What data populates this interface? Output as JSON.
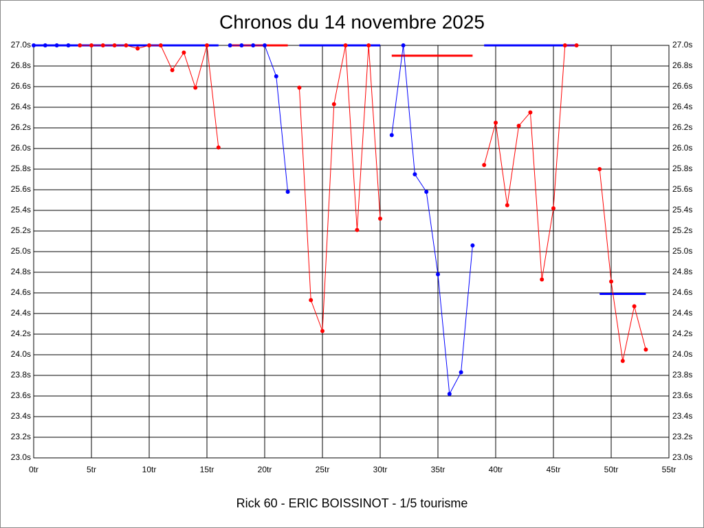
{
  "chart_data": {
    "type": "line",
    "title": "Chronos du 14 novembre 2025",
    "subtitle": "Rick 60 - ERIC BOISSINOT - 1/5 tourisme",
    "x": [
      0,
      1,
      2,
      3,
      4,
      5,
      6,
      7,
      8,
      9,
      10,
      11,
      12,
      13,
      14,
      15,
      16,
      17,
      18,
      19,
      20,
      21,
      22,
      23,
      24,
      25,
      26,
      27,
      28,
      29,
      30,
      31,
      32,
      33,
      34,
      35,
      36,
      37,
      38,
      39,
      40,
      41,
      42,
      43,
      44,
      45,
      46,
      47,
      48,
      49,
      50,
      51,
      52,
      53
    ],
    "series": [
      {
        "color": "#0000ff",
        "values": [
          27.0,
          27.0,
          27.0,
          27.0,
          null,
          null,
          null,
          null,
          null,
          null,
          null,
          null,
          null,
          null,
          null,
          null,
          null,
          27.0,
          27.0,
          27.0,
          27.0,
          26.7,
          25.58,
          null,
          null,
          null,
          null,
          null,
          null,
          null,
          null,
          26.13,
          27.0,
          25.75,
          25.58,
          24.78,
          23.62,
          23.83,
          25.06,
          null,
          null,
          null,
          null,
          null,
          null,
          null,
          null,
          null,
          null,
          null,
          null,
          null,
          null,
          null
        ]
      },
      {
        "color": "#ff0000",
        "values": [
          null,
          null,
          null,
          null,
          27.0,
          27.0,
          27.0,
          27.0,
          27.0,
          26.97,
          27.0,
          27.0,
          26.76,
          26.93,
          26.59,
          27.0,
          26.01,
          null,
          null,
          null,
          null,
          null,
          null,
          26.59,
          24.53,
          24.23,
          26.43,
          27.0,
          25.21,
          27.0,
          25.32,
          null,
          null,
          null,
          null,
          null,
          null,
          null,
          null,
          25.84,
          26.25,
          25.45,
          26.22,
          26.35,
          24.73,
          25.42,
          27.0,
          27.0,
          null,
          25.8,
          24.71,
          23.94,
          24.47,
          24.05
        ]
      }
    ],
    "averages": [
      {
        "from": 0,
        "to": 16,
        "value": 27.0,
        "color": "#0000ff"
      },
      {
        "from": 17,
        "to": 22,
        "value": 27.0,
        "color": "#ff0000"
      },
      {
        "from": 23,
        "to": 30,
        "value": 27.0,
        "color": "#0000ff"
      },
      {
        "from": 31,
        "to": 38,
        "value": 26.9,
        "color": "#ff0000"
      },
      {
        "from": 39,
        "to": 47,
        "value": 27.0,
        "color": "#0000ff"
      },
      {
        "from": 49,
        "to": 53,
        "value": 24.59,
        "color": "#0000ff"
      }
    ],
    "xlim": [
      0,
      55
    ],
    "xticks": [
      {
        "value": 0,
        "label": "0tr"
      },
      {
        "value": 5,
        "label": "5tr"
      },
      {
        "value": 10,
        "label": "10tr"
      },
      {
        "value": 15,
        "label": "15tr"
      },
      {
        "value": 20,
        "label": "20tr"
      },
      {
        "value": 25,
        "label": "25tr"
      },
      {
        "value": 30,
        "label": "30tr"
      },
      {
        "value": 35,
        "label": "35tr"
      },
      {
        "value": 40,
        "label": "40tr"
      },
      {
        "value": 45,
        "label": "45tr"
      },
      {
        "value": 50,
        "label": "50tr"
      },
      {
        "value": 55,
        "label": "55tr"
      }
    ],
    "ylim": [
      23.0,
      27.0
    ],
    "yticks": [
      {
        "value": 23.0,
        "label": "23.0s"
      },
      {
        "value": 23.2,
        "label": "23.2s"
      },
      {
        "value": 23.4,
        "label": "23.4s"
      },
      {
        "value": 23.6,
        "label": "23.6s"
      },
      {
        "value": 23.8,
        "label": "23.8s"
      },
      {
        "value": 24.0,
        "label": "24.0s"
      },
      {
        "value": 24.2,
        "label": "24.2s"
      },
      {
        "value": 24.4,
        "label": "24.4s"
      },
      {
        "value": 24.6,
        "label": "24.6s"
      },
      {
        "value": 24.8,
        "label": "24.8s"
      },
      {
        "value": 25.0,
        "label": "25.0s"
      },
      {
        "value": 25.2,
        "label": "25.2s"
      },
      {
        "value": 25.4,
        "label": "25.4s"
      },
      {
        "value": 25.6,
        "label": "25.6s"
      },
      {
        "value": 25.8,
        "label": "25.8s"
      },
      {
        "value": 26.0,
        "label": "26.0s"
      },
      {
        "value": 26.2,
        "label": "26.2s"
      },
      {
        "value": 26.4,
        "label": "26.4s"
      },
      {
        "value": 26.6,
        "label": "26.6s"
      },
      {
        "value": 26.8,
        "label": "26.8s"
      },
      {
        "value": 27.0,
        "label": "27.0s"
      }
    ],
    "grid": true
  }
}
